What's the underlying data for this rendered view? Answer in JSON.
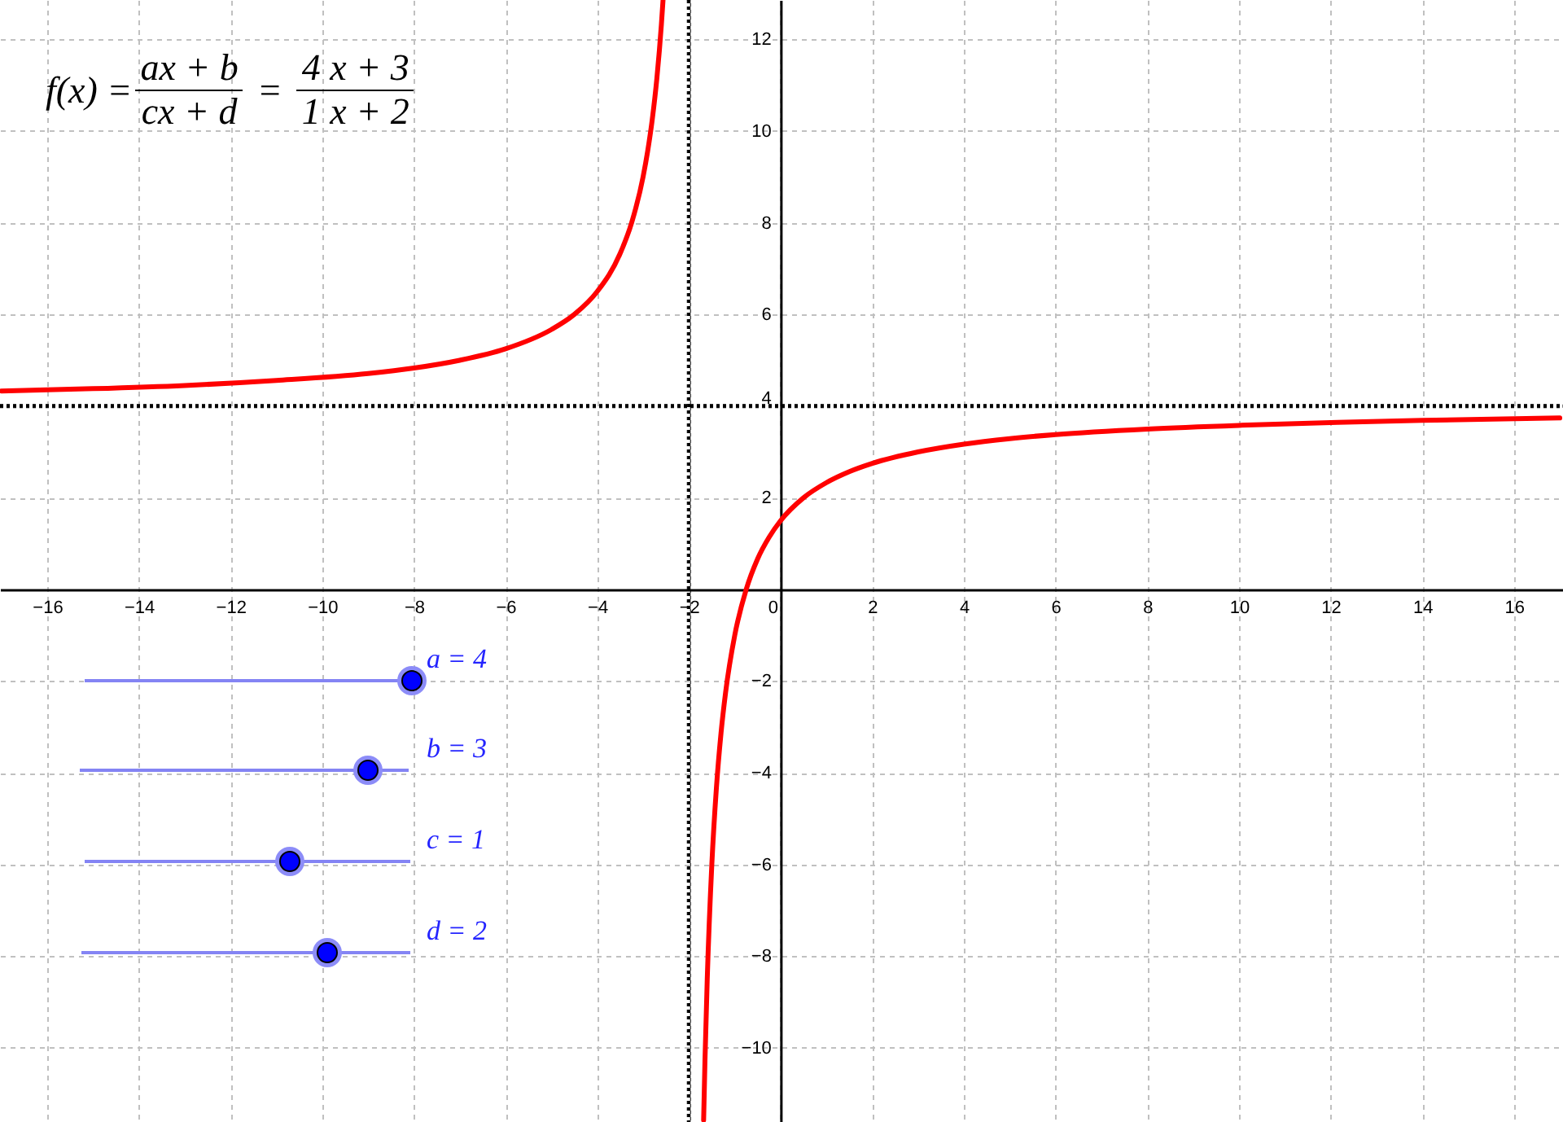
{
  "chart_data": {
    "type": "line",
    "xlim": [
      -17.03,
      17.07
    ],
    "ylim": [
      -11.62,
      12.86
    ],
    "xticks": [
      {
        "value": -16,
        "label": "−16"
      },
      {
        "value": -14,
        "label": "−14"
      },
      {
        "value": -12,
        "label": "−12"
      },
      {
        "value": -10,
        "label": "−10"
      },
      {
        "value": -8,
        "label": "−8"
      },
      {
        "value": -6,
        "label": "−6"
      },
      {
        "value": -4,
        "label": "−4"
      },
      {
        "value": -2,
        "label": "−2"
      },
      0,
      2,
      4,
      6,
      8,
      10,
      12,
      14,
      16
    ],
    "yticks": [
      {
        "value": -10,
        "label": "−10"
      },
      {
        "value": -8,
        "label": "−8"
      },
      {
        "value": -6,
        "label": "−6"
      },
      {
        "value": -4,
        "label": "−4"
      },
      {
        "value": -2,
        "label": "−2"
      },
      2,
      4,
      6,
      8,
      10,
      12
    ],
    "grid": true,
    "series": [
      {
        "color": "#ff0000",
        "x": [
          -17,
          -15,
          -13,
          -11,
          -9,
          -8,
          -7,
          -6,
          -5,
          -4.5,
          -4,
          -3.5,
          -3.25,
          -3,
          -2.9,
          -2.8,
          -2.7,
          -2.6,
          -2.565
        ],
        "values": [
          4.33,
          4.38,
          4.45,
          4.56,
          4.71,
          4.83,
          5,
          5.25,
          5.67,
          6,
          6.5,
          7.33,
          8,
          9,
          9.56,
          10.25,
          11.14,
          12.33,
          12.85
        ]
      },
      {
        "color": "#ff0000",
        "x": [
          -1.679,
          -1.65,
          -1.6,
          -1.5,
          -1.4,
          -1.3,
          -1.2,
          -1,
          -0.75,
          -0.5,
          -0.25,
          0,
          0.5,
          1,
          1.5,
          2,
          3,
          4,
          5,
          6,
          8,
          10,
          12,
          14,
          17
        ],
        "values": [
          -11.58,
          -10.29,
          -8.5,
          -6,
          -4.33,
          -3.14,
          -2.25,
          -1,
          0,
          0.67,
          1.14,
          1.5,
          2,
          2.33,
          2.57,
          2.75,
          3,
          3.17,
          3.29,
          3.38,
          3.5,
          3.58,
          3.64,
          3.69,
          3.74
        ]
      }
    ],
    "ref_lines": [
      {
        "axis": "x",
        "value": -2,
        "color": "#000000",
        "line_style": "dotted"
      },
      {
        "axis": "y",
        "value": 4,
        "color": "#000000",
        "line_style": "dotted"
      }
    ],
    "annotations": [
      "f(x) =",
      "ax + b",
      "cx + d",
      "=",
      "4 x + 3",
      "1 x + 2",
      "a = 4",
      "b = 3",
      "c = 1",
      "d = 2"
    ]
  }
}
